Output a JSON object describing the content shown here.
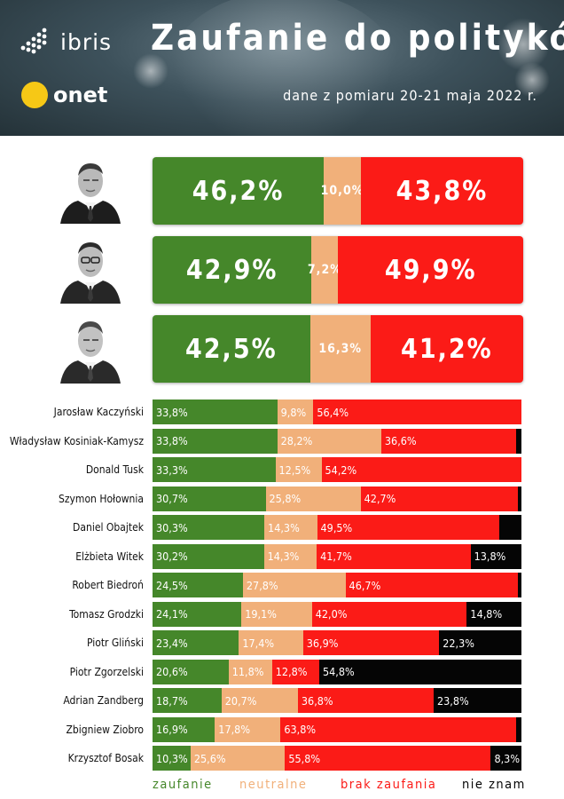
{
  "header": {
    "title": "Zaufanie do polityków",
    "subtitle": "dane z pomiaru 20-21 maja 2022 r.",
    "brand_ibris": "ibris",
    "brand_onet": "onet"
  },
  "colors": {
    "zaufanie": "#45872a",
    "neutralne": "#f1b07a",
    "brak_zaufania": "#fb1b17",
    "nie_znam": "#050505",
    "header_bg": "#3b4e58"
  },
  "legend": {
    "zaufanie": "zaufanie",
    "neutralne": "neutralne",
    "brak_zaufania": "brak zaufania",
    "nie_znam": "nie znam"
  },
  "chart_data": {
    "type": "bar",
    "stacked": true,
    "orientation": "horizontal",
    "series_names": [
      "zaufanie",
      "neutralne",
      "brak zaufania",
      "nie znam"
    ],
    "top_rows": [
      {
        "values": [
          46.2,
          10.0,
          43.8,
          0
        ],
        "labels": [
          "46,2%",
          "10,0%",
          "43,8%",
          ""
        ]
      },
      {
        "values": [
          42.9,
          7.2,
          49.9,
          0
        ],
        "labels": [
          "42,9%",
          "7,2%",
          "49,9%",
          ""
        ]
      },
      {
        "values": [
          42.5,
          16.3,
          41.2,
          0
        ],
        "labels": [
          "42,5%",
          "16,3%",
          "41,2%",
          ""
        ]
      }
    ],
    "rows": [
      {
        "name": "Jarosław Kaczyński",
        "values": [
          33.8,
          9.8,
          56.4,
          0
        ],
        "labels": [
          "33,8%",
          "9,8%",
          "56,4%",
          ""
        ]
      },
      {
        "name": "Władysław Kosiniak-Kamysz",
        "values": [
          33.8,
          28.2,
          36.6,
          1.4
        ],
        "labels": [
          "33,8%",
          "28,2%",
          "36,6%",
          ""
        ]
      },
      {
        "name": "Donald Tusk",
        "values": [
          33.3,
          12.5,
          54.2,
          0
        ],
        "labels": [
          "33,3%",
          "12,5%",
          "54,2%",
          ""
        ]
      },
      {
        "name": "Szymon Hołownia",
        "values": [
          30.7,
          25.8,
          42.7,
          0.8
        ],
        "labels": [
          "30,7%",
          "25,8%",
          "42,7%",
          ""
        ]
      },
      {
        "name": "Daniel Obajtek",
        "values": [
          30.3,
          14.3,
          49.5,
          5.9
        ],
        "labels": [
          "30,3%",
          "14,3%",
          "49,5%",
          ""
        ]
      },
      {
        "name": "Elżbieta Witek",
        "values": [
          30.2,
          14.3,
          41.7,
          13.8
        ],
        "labels": [
          "30,2%",
          "14,3%",
          "41,7%",
          "13,8%"
        ]
      },
      {
        "name": "Robert Biedroń",
        "values": [
          24.5,
          27.8,
          46.7,
          1.0
        ],
        "labels": [
          "24,5%",
          "27,8%",
          "46,7%",
          ""
        ]
      },
      {
        "name": "Tomasz Grodzki",
        "values": [
          24.1,
          19.1,
          42.0,
          14.8
        ],
        "labels": [
          "24,1%",
          "19,1%",
          "42,0%",
          "14,8%"
        ]
      },
      {
        "name": "Piotr Gliński",
        "values": [
          23.4,
          17.4,
          36.9,
          22.3
        ],
        "labels": [
          "23,4%",
          "17,4%",
          "36,9%",
          "22,3%"
        ]
      },
      {
        "name": "Piotr Zgorzelski",
        "values": [
          20.6,
          11.8,
          12.8,
          54.8
        ],
        "labels": [
          "20,6%",
          "11,8%",
          "12,8%",
          "54,8%"
        ]
      },
      {
        "name": "Adrian Zandberg",
        "values": [
          18.7,
          20.7,
          36.8,
          23.8
        ],
        "labels": [
          "18,7%",
          "20,7%",
          "36,8%",
          "23,8%"
        ]
      },
      {
        "name": "Zbigniew Ziobro",
        "values": [
          16.9,
          17.8,
          63.8,
          1.5
        ],
        "labels": [
          "16,9%",
          "17,8%",
          "63,8%",
          ""
        ]
      },
      {
        "name": "Krzysztof Bosak",
        "values": [
          10.3,
          25.6,
          55.8,
          8.3
        ],
        "labels": [
          "10,3%",
          "25,6%",
          "55,8%",
          "8,3%"
        ]
      }
    ]
  }
}
